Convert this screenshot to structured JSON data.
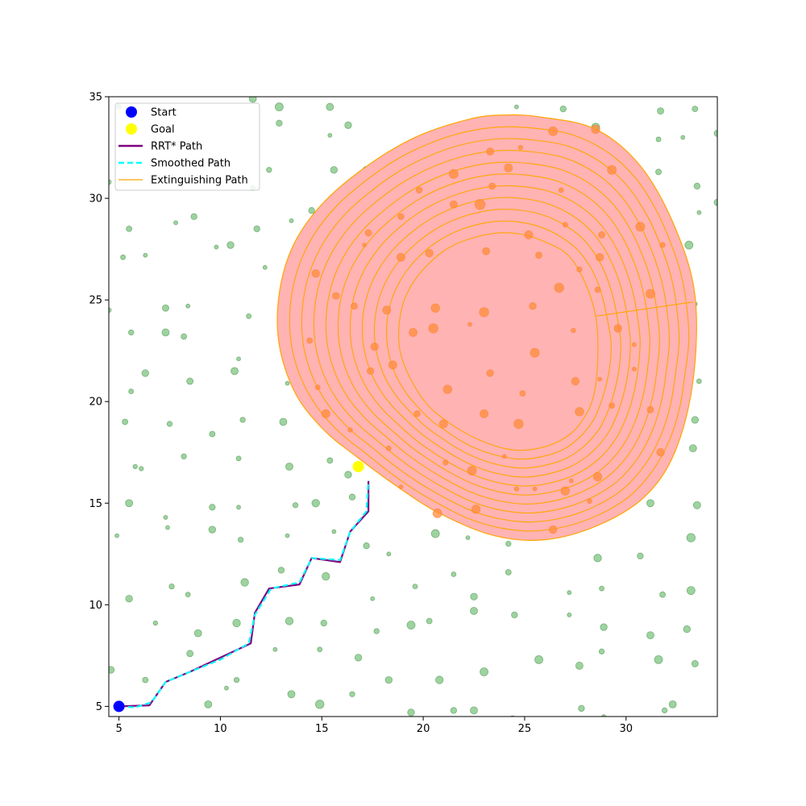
{
  "chart_data": {
    "type": "scatter",
    "title": "",
    "xlabel": "",
    "ylabel": "",
    "xlim": [
      4.5,
      34.5
    ],
    "ylim": [
      4.5,
      35
    ],
    "xticks": [
      5,
      10,
      15,
      20,
      25,
      30
    ],
    "yticks": [
      5,
      10,
      15,
      20,
      25,
      30,
      35
    ],
    "xtick_labels": [
      "5",
      "10",
      "15",
      "20",
      "25",
      "30"
    ],
    "ytick_labels": [
      "5",
      "10",
      "15",
      "20",
      "25",
      "30",
      "35"
    ],
    "grid": false,
    "legend_position": "top-left",
    "legend": [
      {
        "label": "Start",
        "kind": "marker",
        "color": "#0000ff"
      },
      {
        "label": "Goal",
        "kind": "marker",
        "color": "#ffff00"
      },
      {
        "label": "RRT* Path",
        "kind": "line",
        "color": "#800080"
      },
      {
        "label": "Smoothed Path",
        "kind": "dashed",
        "color": "#00ffff"
      },
      {
        "label": "Extinguishing Path",
        "kind": "thin",
        "color": "#ffa500"
      }
    ],
    "colors": {
      "obstacle": "#4caf50",
      "fire_fill": "#ffb3b3",
      "fire_edge": "#ffa500",
      "rrt": "#800080",
      "smoothed": "#00ffff",
      "extinguish": "#ffa500",
      "start": "#0000ff",
      "goal": "#ffff00"
    },
    "start": [
      5,
      5
    ],
    "goal": [
      16.8,
      16.8
    ],
    "rrt_path": [
      [
        5,
        5
      ],
      [
        6.5,
        5.05
      ],
      [
        7.3,
        6.2
      ],
      [
        8.5,
        6.7
      ],
      [
        11.5,
        8.1
      ],
      [
        11.7,
        9.6
      ],
      [
        12.4,
        10.8
      ],
      [
        13.9,
        11
      ],
      [
        14.5,
        12.3
      ],
      [
        15.9,
        12.1
      ],
      [
        16.4,
        13.6
      ],
      [
        17.3,
        14.6
      ],
      [
        17.3,
        16.1
      ]
    ],
    "smoothed_path": [
      [
        5,
        5
      ],
      [
        5.8,
        4.95
      ],
      [
        6.6,
        5.2
      ],
      [
        7.3,
        6.2
      ],
      [
        8.5,
        6.7
      ],
      [
        10,
        7.3
      ],
      [
        11.4,
        8.1
      ],
      [
        11.7,
        9.5
      ],
      [
        12.5,
        10.8
      ],
      [
        13.9,
        11.1
      ],
      [
        14.5,
        12.3
      ],
      [
        15.9,
        12.2
      ],
      [
        16.4,
        13.6
      ],
      [
        17.2,
        14.6
      ],
      [
        17.3,
        16.1
      ]
    ],
    "fire_outer": [
      [
        25.8,
        34
      ],
      [
        28.5,
        33.4
      ],
      [
        30.7,
        31.6
      ],
      [
        32.4,
        28.6
      ],
      [
        33.4,
        25.2
      ],
      [
        33.3,
        21
      ],
      [
        32.4,
        17.5
      ],
      [
        30.9,
        15.3
      ],
      [
        28.6,
        13.9
      ],
      [
        26,
        13.2
      ],
      [
        23.5,
        13.4
      ],
      [
        20.8,
        14.5
      ],
      [
        18.6,
        15.9
      ],
      [
        16.7,
        17.3
      ],
      [
        15.1,
        18.6
      ],
      [
        13.7,
        20.4
      ],
      [
        12.9,
        22.8
      ],
      [
        12.9,
        25.3
      ],
      [
        13.6,
        27.7
      ],
      [
        15,
        29.7
      ],
      [
        17.1,
        31.5
      ],
      [
        19.6,
        33
      ],
      [
        22.3,
        33.9
      ],
      [
        24,
        34.1
      ]
    ],
    "fire_inner": [
      [
        24.3,
        28.3
      ],
      [
        25.9,
        27.9
      ],
      [
        27.4,
        26.9
      ],
      [
        28.5,
        24.2
      ],
      [
        28.5,
        20.8
      ],
      [
        27.8,
        19
      ],
      [
        26.6,
        18
      ],
      [
        24.9,
        17.6
      ],
      [
        23.3,
        17.9
      ],
      [
        21.5,
        18.8
      ],
      [
        20,
        20.1
      ],
      [
        18.9,
        22.3
      ],
      [
        18.9,
        24.4
      ],
      [
        19.6,
        26
      ],
      [
        21,
        27.4
      ],
      [
        22.6,
        28.1
      ]
    ],
    "ring_count": 10,
    "extinguish_tail": [
      [
        28.5,
        24.2
      ],
      [
        33.3,
        24.9
      ]
    ],
    "obstacles_green": [
      [
        5,
        34.5,
        0.12
      ],
      [
        5.2,
        27.1,
        0.12
      ],
      [
        5.5,
        28.5,
        0.14
      ],
      [
        4.5,
        24.5,
        0.12
      ],
      [
        5.6,
        23.4,
        0.13
      ],
      [
        5.6,
        20.5,
        0.12
      ],
      [
        5.3,
        19,
        0.14
      ],
      [
        5.8,
        16.8,
        0.11
      ],
      [
        6.1,
        16.7,
        0.11
      ],
      [
        5.5,
        15,
        0.18
      ],
      [
        4.9,
        13.4,
        0.09
      ],
      [
        5.5,
        10.3,
        0.17
      ],
      [
        4.6,
        6.8,
        0.17
      ],
      [
        6.3,
        6.3,
        0.14
      ],
      [
        6.3,
        21.4,
        0.17
      ],
      [
        6.3,
        27.2,
        0.1
      ],
      [
        7.3,
        24.6,
        0.16
      ],
      [
        7.3,
        23.4,
        0.18
      ],
      [
        7.5,
        18.9,
        0.13
      ],
      [
        7.3,
        14.3,
        0.1
      ],
      [
        7.4,
        13.8,
        0.09
      ],
      [
        6.8,
        9.1,
        0.11
      ],
      [
        7.6,
        10.9,
        0.13
      ],
      [
        8.2,
        23.2,
        0.14
      ],
      [
        8.4,
        24.7,
        0.09
      ],
      [
        8.5,
        21,
        0.16
      ],
      [
        8.2,
        17.3,
        0.13
      ],
      [
        8.4,
        10.5,
        0.12
      ],
      [
        8.5,
        7.6,
        0.16
      ],
      [
        8.9,
        8.6,
        0.18
      ],
      [
        9.4,
        5.1,
        0.18
      ],
      [
        8.7,
        29.1,
        0.15
      ],
      [
        7.8,
        28.8,
        0.08
      ],
      [
        9.6,
        18.4,
        0.14
      ],
      [
        9.6,
        14.8,
        0.15
      ],
      [
        9.6,
        13.7,
        0.17
      ],
      [
        9.8,
        27.6,
        0.1
      ],
      [
        10.5,
        27.7,
        0.17
      ],
      [
        10.7,
        21.5,
        0.18
      ],
      [
        10.9,
        22.1,
        0.09
      ],
      [
        10.9,
        17.2,
        0.12
      ],
      [
        10.9,
        14.8,
        0.08
      ],
      [
        11,
        13.2,
        0.13
      ],
      [
        10.8,
        9.1,
        0.19
      ],
      [
        10.8,
        6.3,
        0.13
      ],
      [
        10.3,
        5.9,
        0.08
      ],
      [
        11.2,
        11.1,
        0.19
      ],
      [
        11.1,
        19.1,
        0.13
      ],
      [
        11.4,
        24.2,
        0.12
      ],
      [
        11.8,
        28.5,
        0.15
      ],
      [
        11.6,
        30.5,
        0.12
      ],
      [
        11.6,
        34.9,
        0.18
      ],
      [
        12.2,
        26.6,
        0.09
      ],
      [
        12.4,
        31.4,
        0.13
      ],
      [
        12.7,
        7.8,
        0.08
      ],
      [
        12.9,
        34.5,
        0.2
      ],
      [
        12.9,
        33.7,
        0.15
      ],
      [
        13.1,
        19,
        0.18
      ],
      [
        13,
        11.7,
        0.15
      ],
      [
        13.3,
        20.9,
        0.1
      ],
      [
        13.2,
        23.4,
        0.16
      ],
      [
        13.3,
        24.9,
        0.16
      ],
      [
        13.3,
        13.4,
        0.08
      ],
      [
        13.4,
        16.8,
        0.18
      ],
      [
        13.4,
        9.2,
        0.19
      ],
      [
        13.5,
        5.6,
        0.18
      ],
      [
        13.5,
        28.9,
        0.1
      ],
      [
        13.7,
        14.9,
        0.13
      ],
      [
        14.5,
        29.4,
        0.15
      ],
      [
        14.7,
        15,
        0.19
      ],
      [
        14.9,
        7.8,
        0.12
      ],
      [
        14.9,
        5.1,
        0.21
      ],
      [
        15.1,
        9.1,
        0.15
      ],
      [
        15.2,
        11.4,
        0.19
      ],
      [
        15.4,
        34.5,
        0.18
      ],
      [
        15.4,
        33.1,
        0.09
      ],
      [
        15.4,
        17.1,
        0.14
      ],
      [
        15.6,
        31.4,
        0.17
      ],
      [
        15.6,
        13.6,
        0.09
      ],
      [
        16.3,
        33.6,
        0.17
      ],
      [
        16.3,
        16.4,
        0.17
      ],
      [
        16.5,
        15.3,
        0.15
      ],
      [
        16.5,
        5.6,
        0.13
      ],
      [
        16.8,
        7.4,
        0.17
      ],
      [
        17.2,
        31.4,
        0.18
      ],
      [
        17.2,
        12.9,
        0.15
      ],
      [
        17.5,
        10.3,
        0.09
      ],
      [
        17.7,
        8.7,
        0.13
      ],
      [
        18.3,
        6.3,
        0.17
      ],
      [
        18.3,
        12.5,
        0.08
      ],
      [
        19.6,
        32.4,
        0.15
      ],
      [
        19.4,
        9,
        0.2
      ],
      [
        19.6,
        10.9,
        0.12
      ],
      [
        19.4,
        4.7,
        0.17
      ],
      [
        20.3,
        9.2,
        0.14
      ],
      [
        20.6,
        13.5,
        0.2
      ],
      [
        20.8,
        6.3,
        0.19
      ],
      [
        21.5,
        11.5,
        0.12
      ],
      [
        21.5,
        33.3,
        0.16
      ],
      [
        21.5,
        4.8,
        0.15
      ],
      [
        22.2,
        13.3,
        0.09
      ],
      [
        22.5,
        10.4,
        0.17
      ],
      [
        22.5,
        9.7,
        0.18
      ],
      [
        22.5,
        4.8,
        0.18
      ],
      [
        23,
        6.7,
        0.2
      ],
      [
        24.2,
        11.6,
        0.14
      ],
      [
        24.2,
        13,
        0.13
      ],
      [
        24.5,
        9.5,
        0.15
      ],
      [
        24.6,
        34.5,
        0.09
      ],
      [
        24.4,
        4.4,
        0.14
      ],
      [
        25.7,
        7.3,
        0.2
      ],
      [
        26.9,
        34.4,
        0.15
      ],
      [
        27.2,
        10.6,
        0.08
      ],
      [
        27.2,
        9.5,
        0.1
      ],
      [
        27.7,
        7,
        0.18
      ],
      [
        27.8,
        4.9,
        0.15
      ],
      [
        28.5,
        33.5,
        0.2
      ],
      [
        28.6,
        12.3,
        0.19
      ],
      [
        28.8,
        10.8,
        0.12
      ],
      [
        28.9,
        8.9,
        0.17
      ],
      [
        28.8,
        7.7,
        0.13
      ],
      [
        28.9,
        4.5,
        0.1
      ],
      [
        30.7,
        12.4,
        0.15
      ],
      [
        31.2,
        15,
        0.18
      ],
      [
        31.2,
        8.5,
        0.18
      ],
      [
        31.6,
        7.3,
        0.2
      ],
      [
        31.6,
        32.9,
        0.12
      ],
      [
        31.7,
        34.3,
        0.16
      ],
      [
        31.6,
        31.3,
        0.14
      ],
      [
        31.8,
        10.5,
        0.14
      ],
      [
        31.9,
        4.8,
        0.13
      ],
      [
        32.3,
        5.1,
        0.18
      ],
      [
        32.8,
        33,
        0.1
      ],
      [
        33,
        8.8,
        0.17
      ],
      [
        33.1,
        27.7,
        0.2
      ],
      [
        33.2,
        10.7,
        0.2
      ],
      [
        33.2,
        13.3,
        0.21
      ],
      [
        33.3,
        17.7,
        0.18
      ],
      [
        33.3,
        22.8,
        0.16
      ],
      [
        33.4,
        24.8,
        0.11
      ],
      [
        33.4,
        34.4,
        0.14
      ],
      [
        33.4,
        7.1,
        0.16
      ],
      [
        33.4,
        19.1,
        0.17
      ],
      [
        33.5,
        14.9,
        0.18
      ],
      [
        33.5,
        30.6,
        0.15
      ],
      [
        33.6,
        21,
        0.12
      ],
      [
        33.6,
        29.3,
        0.09
      ],
      [
        34.5,
        33.2,
        0.16
      ],
      [
        34.5,
        29.8,
        0.16
      ],
      [
        4.5,
        30.8,
        0.12
      ]
    ],
    "obstacles_orange": [
      [
        20.6,
        24.6,
        0.21
      ],
      [
        19.5,
        23.4,
        0.2
      ],
      [
        20.5,
        23.6,
        0.23
      ],
      [
        21.2,
        20.6,
        0.21
      ],
      [
        21,
        18.9,
        0.2
      ],
      [
        22.3,
        23.8,
        0.1
      ],
      [
        23,
        24.4,
        0.23
      ],
      [
        23.3,
        21.4,
        0.17
      ],
      [
        23,
        19.4,
        0.2
      ],
      [
        24.7,
        18.9,
        0.23
      ],
      [
        25.5,
        22.4,
        0.22
      ],
      [
        25.4,
        24.7,
        0.17
      ],
      [
        25.2,
        28.2,
        0.2
      ],
      [
        25.7,
        27.2,
        0.16
      ],
      [
        26.7,
        25.6,
        0.23
      ],
      [
        27.7,
        26.5,
        0.13
      ],
      [
        27.4,
        23.5,
        0.11
      ],
      [
        27.5,
        21,
        0.19
      ],
      [
        27.7,
        19.5,
        0.21
      ],
      [
        24.9,
        20.4,
        0.14
      ],
      [
        18.2,
        24.5,
        0.2
      ],
      [
        18.5,
        21.8,
        0.2
      ],
      [
        17.6,
        22.7,
        0.19
      ],
      [
        17.4,
        21.5,
        0.17
      ],
      [
        16.6,
        24.7,
        0.16
      ],
      [
        17.3,
        28.3,
        0.16
      ],
      [
        17.1,
        27.7,
        0.09
      ],
      [
        15.7,
        25.2,
        0.17
      ],
      [
        14.7,
        26.3,
        0.19
      ],
      [
        14.4,
        23,
        0.14
      ],
      [
        14.8,
        20.7,
        0.12
      ],
      [
        15.2,
        19.4,
        0.2
      ],
      [
        16.4,
        18.6,
        0.11
      ],
      [
        18.3,
        17.7,
        0.12
      ],
      [
        18.9,
        15.8,
        0.1
      ],
      [
        20.7,
        14.5,
        0.22
      ],
      [
        21.1,
        17,
        0.13
      ],
      [
        22.4,
        16.6,
        0.22
      ],
      [
        22.6,
        14.7,
        0.21
      ],
      [
        24,
        17.3,
        0.08
      ],
      [
        24.6,
        15.7,
        0.11
      ],
      [
        25.5,
        15.7,
        0.1
      ],
      [
        26.4,
        13.7,
        0.19
      ],
      [
        27,
        15.6,
        0.21
      ],
      [
        27.3,
        16.1,
        0.09
      ],
      [
        28.2,
        15.1,
        0.12
      ],
      [
        28.6,
        16.3,
        0.21
      ],
      [
        29.3,
        19.8,
        0.14
      ],
      [
        28.7,
        21.1,
        0.1
      ],
      [
        28.6,
        25.5,
        0.14
      ],
      [
        29.6,
        23.6,
        0.19
      ],
      [
        30.4,
        22.8,
        0.1
      ],
      [
        30.4,
        21.6,
        0.09
      ],
      [
        31.2,
        19.6,
        0.16
      ],
      [
        31.7,
        17.5,
        0.19
      ],
      [
        31.2,
        25.3,
        0.22
      ],
      [
        31.8,
        27.7,
        0.13
      ],
      [
        30.7,
        28.6,
        0.22
      ],
      [
        28.8,
        28.2,
        0.16
      ],
      [
        28.7,
        27.1,
        0.19
      ],
      [
        27,
        28.7,
        0.12
      ],
      [
        26.8,
        30.4,
        0.12
      ],
      [
        29.3,
        31.4,
        0.22
      ],
      [
        28.5,
        33.4,
        0.21
      ],
      [
        26.4,
        33.3,
        0.22
      ],
      [
        24.8,
        32.5,
        0.11
      ],
      [
        23.3,
        32.3,
        0.18
      ],
      [
        24.2,
        31.5,
        0.2
      ],
      [
        22.8,
        29.7,
        0.25
      ],
      [
        23.4,
        30.6,
        0.16
      ],
      [
        21.5,
        31.2,
        0.22
      ],
      [
        21.5,
        29.7,
        0.18
      ],
      [
        19.8,
        30.4,
        0.15
      ],
      [
        18.9,
        29.1,
        0.15
      ],
      [
        18.9,
        27.1,
        0.2
      ],
      [
        20.3,
        27.3,
        0.19
      ],
      [
        23.1,
        27.4,
        0.18
      ],
      [
        19.7,
        19.4,
        0.15
      ]
    ]
  }
}
